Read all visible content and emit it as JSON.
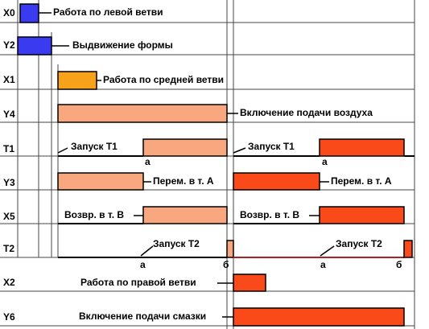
{
  "rows": [
    {
      "signal": "X0",
      "notes": [
        "Работа по левой ветви"
      ]
    },
    {
      "signal": "Y2",
      "notes": [
        "Выдвижение формы"
      ]
    },
    {
      "signal": "X1",
      "notes": [
        "Работа по средней ветви"
      ]
    },
    {
      "signal": "Y4",
      "notes": [
        "Включение подачи воздуха"
      ]
    },
    {
      "signal": "T1",
      "notes": [
        "Запуск Т1",
        "а",
        "Запуск Т1",
        "а"
      ]
    },
    {
      "signal": "Y3",
      "notes": [
        "Перем. в т. А",
        "Перем. в т. А"
      ]
    },
    {
      "signal": "X5",
      "notes": [
        "Возвр. в т. В",
        "Возвр. в т. В"
      ]
    },
    {
      "signal": "T2",
      "notes": [
        "Запуск Т2",
        "а",
        "б",
        "Запуск Т2",
        "а",
        "б"
      ]
    },
    {
      "signal": "X2",
      "notes": [
        "Работа по правой ветви"
      ]
    },
    {
      "signal": "Y6",
      "notes": [
        "Включение подачи смазки"
      ]
    }
  ]
}
